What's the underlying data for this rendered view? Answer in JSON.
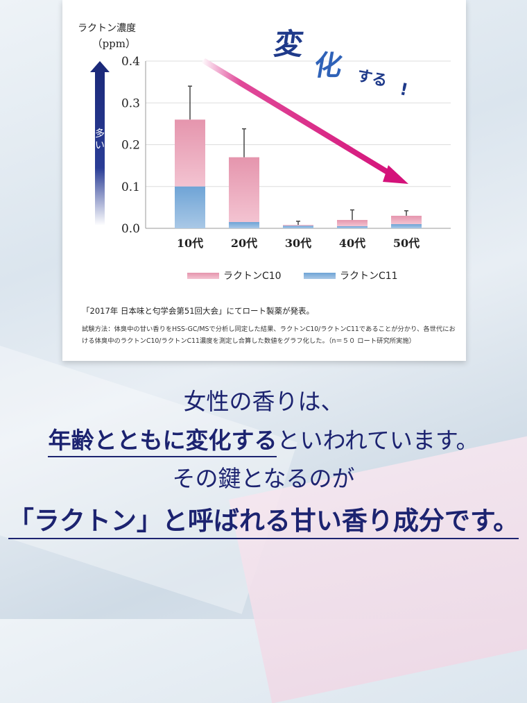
{
  "chart_data": {
    "type": "bar",
    "stacked": true,
    "title": "",
    "ylabel": "ラクトン濃度",
    "yunit": "（ppm）",
    "ylim": [
      0,
      0.4
    ],
    "yticks": [
      "0.0",
      "0.1",
      "0.2",
      "0.3",
      "0.4"
    ],
    "grid": true,
    "categories": [
      "10代",
      "20代",
      "30代",
      "40代",
      "50代"
    ],
    "series": [
      {
        "name": "ラクトンC11",
        "color": "#7fb0dc",
        "values": [
          0.1,
          0.015,
          0.006,
          0.005,
          0.01
        ]
      },
      {
        "name": "ラクトンC10",
        "color": "#eba3b8",
        "values": [
          0.16,
          0.155,
          0.002,
          0.015,
          0.02
        ]
      }
    ],
    "error_bar_top": [
      0.34,
      0.238,
      0.017,
      0.044,
      0.042
    ],
    "legend_position": "bottom",
    "annotation": {
      "text_big1": "変",
      "text_big2": "化",
      "text_small": "する",
      "exclaim": "!"
    },
    "side_arrow_label": [
      "多",
      "い"
    ]
  },
  "notes": {
    "source": "「2017年 日本味と匂学会第51回大会」にてロート製薬が発表。",
    "method": "試験方法：体臭中の甘い香りをHSS-GC/MSで分析し同定した結果、ラクトンC10/ラクトンC11であることが分かり、各世代における体臭中のラクトンC10/ラクトンC11濃度を測定し合算した数値をグラフ化した。（n＝５０ ロート研究所実施）"
  },
  "message": {
    "line1": "女性の香りは、",
    "line2_bold": "年齢とともに変化する",
    "line2_rest": "といわれています。",
    "line3": "その鍵となるのが",
    "line4": "「ラクトン」と呼ばれる甘い香り成分です。"
  },
  "colors": {
    "navy": "#1c2370",
    "magenta": "#d4127a"
  }
}
